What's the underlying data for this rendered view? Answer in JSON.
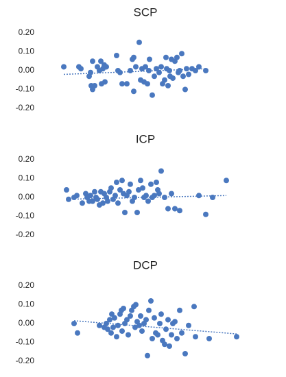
{
  "chart_data": [
    {
      "type": "scatter",
      "title": "SCP",
      "color": "#4a78bf",
      "xlim": [
        60,
        360
      ],
      "ylim": [
        -0.2,
        0.2
      ],
      "yticks": [
        {
          "value": 0.2,
          "label": "0.20"
        },
        {
          "value": 0.1,
          "label": "0.10"
        },
        {
          "value": 0,
          "label": "0.00"
        },
        {
          "value": -0.1,
          "label": "-0.10"
        },
        {
          "value": -0.2,
          "label": "-0.20"
        }
      ],
      "x": [
        93,
        115,
        118,
        130,
        132,
        133,
        135,
        135,
        138,
        142,
        145,
        147,
        148,
        150,
        152,
        153,
        155,
        170,
        172,
        175,
        178,
        185,
        190,
        193,
        195,
        195,
        198,
        203,
        205,
        207,
        210,
        212,
        215,
        217,
        218,
        222,
        225,
        228,
        232,
        235,
        237,
        240,
        242,
        243,
        245,
        247,
        248,
        250,
        252,
        255,
        258,
        260,
        262,
        265,
        267,
        270,
        272,
        275,
        280,
        285,
        290,
        300
      ],
      "values": [
        0.02,
        0.02,
        0.01,
        -0.03,
        -0.01,
        -0.08,
        0.05,
        -0.1,
        -0.08,
        0.02,
        0,
        0.05,
        -0.07,
        0.01,
        0.03,
        -0.06,
        0.02,
        0.08,
        0,
        -0.01,
        -0.07,
        -0.07,
        0,
        0.06,
        0.07,
        -0.11,
        0.02,
        0.15,
        -0.05,
        0.01,
        -0.06,
        0.02,
        -0.07,
        0,
        0.06,
        -0.13,
        -0.03,
        0.01,
        -0.01,
        0.02,
        -0.07,
        -0.05,
        0.07,
        0.01,
        -0.08,
        0,
        -0.03,
        0.06,
        -0.04,
        0.05,
        0.07,
        -0.01,
        0,
        0.09,
        -0.03,
        -0.1,
        0.01,
        -0.02,
        0.01,
        0,
        0.02,
        0
      ],
      "trendline": {
        "x": [
          93,
          300
        ],
        "values": [
          -0.02,
          0.01
        ]
      }
    },
    {
      "type": "scatter",
      "title": "ICP",
      "color": "#4a78bf",
      "xlim": [
        60,
        360
      ],
      "ylim": [
        -0.2,
        0.2
      ],
      "yticks": [
        {
          "value": 0.2,
          "label": "0.20"
        },
        {
          "value": 0.1,
          "label": "0.10"
        },
        {
          "value": 0,
          "label": "0.00"
        },
        {
          "value": -0.1,
          "label": "-0.10"
        },
        {
          "value": -0.2,
          "label": "-0.20"
        }
      ],
      "x": [
        97,
        100,
        108,
        112,
        120,
        125,
        127,
        130,
        132,
        135,
        138,
        140,
        142,
        145,
        147,
        150,
        152,
        155,
        157,
        160,
        162,
        165,
        168,
        170,
        172,
        175,
        178,
        180,
        182,
        185,
        188,
        190,
        193,
        196,
        200,
        202,
        205,
        208,
        210,
        213,
        216,
        220,
        222,
        225,
        228,
        230,
        232,
        235,
        240,
        245,
        250,
        255,
        262,
        290,
        300,
        310,
        330
      ],
      "values": [
        0.04,
        -0.01,
        0,
        0.01,
        -0.03,
        0.02,
        0,
        -0.02,
        0.01,
        -0.02,
        0.03,
        0,
        -0.01,
        -0.04,
        0.03,
        -0.03,
        0.02,
        0,
        -0.02,
        0.03,
        0.05,
        -0.01,
        0.01,
        0.08,
        -0.03,
        0.04,
        0.09,
        0.02,
        -0.08,
        0.01,
        0.03,
        0.07,
        -0.02,
        0,
        -0.08,
        0.04,
        0.09,
        0.05,
        0,
        0.01,
        -0.02,
        0.07,
        0,
        0.01,
        0.08,
        0.04,
        0.02,
        0.14,
        0,
        -0.06,
        0.02,
        -0.06,
        -0.07,
        0.01,
        -0.09,
        0,
        0.09
      ],
      "trendline": {
        "x": [
          97,
          330
        ],
        "values": [
          -0.01,
          0.01
        ]
      }
    },
    {
      "type": "scatter",
      "title": "DCP",
      "color": "#4a78bf",
      "xlim": [
        60,
        360
      ],
      "ylim": [
        -0.2,
        0.2
      ],
      "yticks": [
        {
          "value": 0.2,
          "label": "0.20"
        },
        {
          "value": 0.1,
          "label": "0.10"
        },
        {
          "value": 0,
          "label": "0.00"
        },
        {
          "value": -0.1,
          "label": "-0.10"
        },
        {
          "value": -0.2,
          "label": "-0.20"
        }
      ],
      "x": [
        108,
        113,
        145,
        152,
        155,
        157,
        160,
        162,
        163,
        165,
        167,
        170,
        172,
        175,
        177,
        178,
        180,
        182,
        185,
        187,
        190,
        192,
        195,
        197,
        198,
        200,
        203,
        205,
        207,
        210,
        213,
        215,
        217,
        220,
        222,
        225,
        227,
        230,
        233,
        235,
        237,
        240,
        242,
        245,
        247,
        250,
        252,
        255,
        258,
        262,
        265,
        270,
        275,
        283,
        285,
        305,
        345
      ],
      "values": [
        0,
        -0.05,
        -0.01,
        -0.02,
        0,
        -0.03,
        0.02,
        -0.05,
        0.05,
        -0.02,
        0.03,
        -0.07,
        -0.01,
        0.05,
        0.07,
        -0.04,
        0.08,
        0,
        0.02,
        -0.06,
        0.04,
        0.07,
        0.09,
        -0.02,
        0.1,
        0.01,
        -0.01,
        0.04,
        -0.04,
        0,
        0.02,
        -0.17,
        0.07,
        0.12,
        -0.08,
        0.03,
        -0.05,
        -0.06,
        0,
        0.05,
        -0.09,
        -0.11,
        -0.03,
        0.02,
        -0.12,
        -0.06,
        0,
        0.01,
        -0.08,
        0.07,
        -0.05,
        -0.16,
        -0.01,
        0.09,
        -0.07,
        -0.08,
        -0.07
      ],
      "trendline": {
        "x": [
          108,
          345
        ],
        "values": [
          0.015,
          -0.055
        ]
      }
    }
  ]
}
